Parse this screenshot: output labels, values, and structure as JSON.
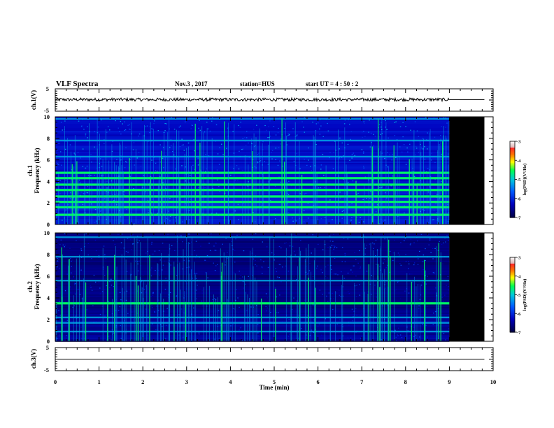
{
  "header": {
    "title": "VLF Spectra",
    "date": "Nov.3 , 2017",
    "station": "station=HUS",
    "start_time": "start UT = 4 : 50 : 2"
  },
  "chart_data": [
    {
      "type": "line",
      "id": "ch1-waveform",
      "ylabel": "ch.1(V)",
      "ylim": [
        -5,
        5
      ],
      "yticks": [
        "5",
        "-5"
      ],
      "xlim": [
        0,
        10
      ],
      "data_end_min": 9,
      "line_end_min": 9.8,
      "baseline_v": 0.2
    },
    {
      "type": "heatmap",
      "id": "ch1-spectrogram",
      "ylabel_line1": "ch.1",
      "ylabel_line2": "Frequency (kHz)",
      "ylim": [
        0,
        10
      ],
      "yticks": [
        "0",
        "2",
        "4",
        "6",
        "8",
        "10"
      ],
      "xlim": [
        0,
        10
      ],
      "data_end_min": 9,
      "no_data_end_min": 9.8,
      "strong_bands_khz": [
        0.9,
        1.6,
        2.1,
        2.6,
        3.2,
        3.7,
        4.3,
        4.8
      ],
      "medium_bands_khz": [
        6.3,
        7.8,
        9.8
      ],
      "colorbar": {
        "label": "log(PSD)(V²/Hz)",
        "range": [
          -7,
          -3
        ],
        "ticks": [
          "-3",
          "-4",
          "-5",
          "-6",
          "-7"
        ],
        "colors": [
          "#f0f0f0",
          "#ffc8c8",
          "#ff3030",
          "#ff8000",
          "#ffff00",
          "#00ff00",
          "#00d0d0",
          "#0070ff",
          "#0000c0",
          "#000050"
        ]
      }
    },
    {
      "type": "heatmap",
      "id": "ch2-spectrogram",
      "ylabel_line1": "ch.2",
      "ylabel_line2": "Frequency (kHz)",
      "ylim": [
        0,
        10
      ],
      "yticks": [
        "0",
        "2",
        "4",
        "6",
        "8",
        "10"
      ],
      "xlim": [
        0,
        10
      ],
      "data_end_min": 9,
      "no_data_end_min": 9.8,
      "strong_bands_khz": [
        3.5
      ],
      "medium_bands_khz": [
        0.9,
        1.7,
        2.2,
        5.6,
        7.8,
        9.6
      ],
      "colorbar": {
        "label": "log(PSD)(V²/Hz)",
        "range": [
          -7,
          -3
        ],
        "ticks": [
          "-3",
          "-4",
          "-5",
          "-6",
          "-7"
        ],
        "colors": [
          "#f0f0f0",
          "#ffc8c8",
          "#ff3030",
          "#ff8000",
          "#ffff00",
          "#00ff00",
          "#00d0d0",
          "#0070ff",
          "#0000c0",
          "#000050"
        ]
      }
    },
    {
      "type": "line",
      "id": "ch3-waveform",
      "ylabel": "ch.3(V)",
      "ylim": [
        -5,
        5
      ],
      "yticks": [
        "5",
        "-5"
      ],
      "xlim": [
        0,
        10
      ],
      "line_end_min": 9.8,
      "baseline_v": 0,
      "xlabel": "Time (min)",
      "xticks": [
        "0",
        "1",
        "2",
        "3",
        "4",
        "5",
        "6",
        "7",
        "8",
        "9",
        "10"
      ]
    }
  ]
}
